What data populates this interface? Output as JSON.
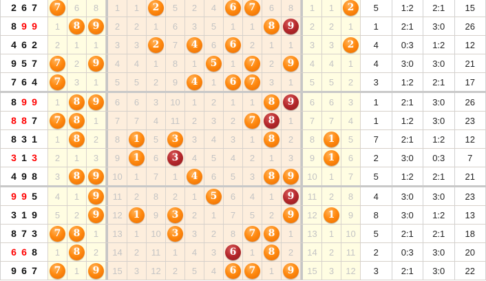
{
  "colors": {
    "ball_orange": "#ff8a10",
    "ball_red": "#b4272b",
    "repeat_digit": "#ff0000",
    "yellow_zone": "#fffde2",
    "orange_zone": "#fdeedd"
  },
  "rows": [
    {
      "draw": [
        "2",
        "6",
        "7"
      ],
      "repeat": [],
      "left": [
        {
          "v": "7",
          "ball": "orange"
        },
        "6",
        "8"
      ],
      "digits": [
        "1",
        "1",
        {
          "v": "2",
          "ball": "orange"
        },
        "5",
        "2",
        "4",
        {
          "v": "6",
          "ball": "orange"
        },
        {
          "v": "7",
          "ball": "orange"
        },
        "6",
        "8"
      ],
      "right": [
        "1",
        "1",
        {
          "v": "2",
          "ball": "orange"
        }
      ],
      "stats": [
        "5",
        "1:2",
        "2:1",
        "15"
      ]
    },
    {
      "draw": [
        "8",
        "9",
        "9"
      ],
      "repeat": [
        1,
        2
      ],
      "left": [
        "1",
        {
          "v": "8",
          "ball": "orange"
        },
        {
          "v": "9",
          "ball": "orange"
        }
      ],
      "digits": [
        "2",
        "2",
        "1",
        "6",
        "3",
        "5",
        "1",
        "1",
        {
          "v": "8",
          "ball": "orange"
        },
        {
          "v": "9",
          "ball": "red"
        }
      ],
      "right": [
        "2",
        "2",
        "1"
      ],
      "stats": [
        "1",
        "2:1",
        "3:0",
        "26"
      ]
    },
    {
      "draw": [
        "4",
        "6",
        "2"
      ],
      "repeat": [],
      "left": [
        "2",
        "1",
        "1"
      ],
      "digits": [
        "3",
        "3",
        {
          "v": "2",
          "ball": "orange"
        },
        "7",
        {
          "v": "4",
          "ball": "orange"
        },
        "6",
        {
          "v": "6",
          "ball": "orange"
        },
        "2",
        "1",
        "1"
      ],
      "right": [
        "3",
        "3",
        {
          "v": "2",
          "ball": "orange"
        }
      ],
      "stats": [
        "4",
        "0:3",
        "1:2",
        "12"
      ]
    },
    {
      "draw": [
        "9",
        "5",
        "7"
      ],
      "repeat": [],
      "left": [
        {
          "v": "7",
          "ball": "orange"
        },
        "2",
        {
          "v": "9",
          "ball": "orange"
        }
      ],
      "digits": [
        "4",
        "4",
        "1",
        "8",
        "1",
        {
          "v": "5",
          "ball": "orange"
        },
        "1",
        {
          "v": "7",
          "ball": "orange"
        },
        "2",
        {
          "v": "9",
          "ball": "orange"
        }
      ],
      "right": [
        "4",
        "4",
        "1"
      ],
      "stats": [
        "4",
        "3:0",
        "3:0",
        "21"
      ]
    },
    {
      "draw": [
        "7",
        "6",
        "4"
      ],
      "repeat": [],
      "left": [
        {
          "v": "7",
          "ball": "orange"
        },
        "3",
        "1"
      ],
      "digits": [
        "5",
        "5",
        "2",
        "9",
        {
          "v": "4",
          "ball": "orange"
        },
        "1",
        {
          "v": "6",
          "ball": "orange"
        },
        {
          "v": "7",
          "ball": "orange"
        },
        "3",
        "1"
      ],
      "right": [
        "5",
        "5",
        "2"
      ],
      "stats": [
        "3",
        "1:2",
        "2:1",
        "17"
      ]
    },
    {
      "draw": [
        "8",
        "9",
        "9"
      ],
      "repeat": [
        1,
        2
      ],
      "left": [
        "1",
        {
          "v": "8",
          "ball": "orange"
        },
        {
          "v": "9",
          "ball": "orange"
        }
      ],
      "digits": [
        "6",
        "6",
        "3",
        "10",
        "1",
        "2",
        "1",
        "1",
        {
          "v": "8",
          "ball": "orange"
        },
        {
          "v": "9",
          "ball": "red"
        }
      ],
      "right": [
        "6",
        "6",
        "3"
      ],
      "stats": [
        "1",
        "2:1",
        "3:0",
        "26"
      ]
    },
    {
      "draw": [
        "8",
        "8",
        "7"
      ],
      "repeat": [
        0,
        1
      ],
      "left": [
        {
          "v": "7",
          "ball": "orange"
        },
        {
          "v": "8",
          "ball": "orange"
        },
        "1"
      ],
      "digits": [
        "7",
        "7",
        "4",
        "11",
        "2",
        "3",
        "2",
        {
          "v": "7",
          "ball": "orange"
        },
        {
          "v": "8",
          "ball": "red"
        },
        "1"
      ],
      "right": [
        "7",
        "7",
        "4"
      ],
      "stats": [
        "1",
        "1:2",
        "3:0",
        "23"
      ]
    },
    {
      "draw": [
        "8",
        "3",
        "1"
      ],
      "repeat": [],
      "left": [
        "1",
        {
          "v": "8",
          "ball": "orange"
        },
        "2"
      ],
      "digits": [
        "8",
        {
          "v": "1",
          "ball": "orange"
        },
        "5",
        {
          "v": "3",
          "ball": "orange"
        },
        "3",
        "4",
        "3",
        "1",
        {
          "v": "8",
          "ball": "orange"
        },
        "2"
      ],
      "right": [
        "8",
        {
          "v": "1",
          "ball": "orange"
        },
        "5"
      ],
      "stats": [
        "7",
        "2:1",
        "1:2",
        "12"
      ]
    },
    {
      "draw": [
        "3",
        "1",
        "3"
      ],
      "repeat": [
        0,
        2
      ],
      "left": [
        "2",
        "1",
        "3"
      ],
      "digits": [
        "9",
        {
          "v": "1",
          "ball": "orange"
        },
        "6",
        {
          "v": "3",
          "ball": "red"
        },
        "4",
        "5",
        "4",
        "2",
        "1",
        "3"
      ],
      "right": [
        "9",
        {
          "v": "1",
          "ball": "orange"
        },
        "6"
      ],
      "stats": [
        "2",
        "3:0",
        "0:3",
        "7"
      ]
    },
    {
      "draw": [
        "4",
        "9",
        "8"
      ],
      "repeat": [],
      "left": [
        "3",
        {
          "v": "8",
          "ball": "orange"
        },
        {
          "v": "9",
          "ball": "orange"
        }
      ],
      "digits": [
        "10",
        "1",
        "7",
        "1",
        {
          "v": "4",
          "ball": "orange"
        },
        "6",
        "5",
        "3",
        {
          "v": "8",
          "ball": "orange"
        },
        {
          "v": "9",
          "ball": "orange"
        }
      ],
      "right": [
        "10",
        "1",
        "7"
      ],
      "stats": [
        "5",
        "1:2",
        "2:1",
        "21"
      ]
    },
    {
      "draw": [
        "9",
        "9",
        "5"
      ],
      "repeat": [
        0,
        1
      ],
      "left": [
        "4",
        "1",
        {
          "v": "9",
          "ball": "orange"
        }
      ],
      "digits": [
        "11",
        "2",
        "8",
        "2",
        "1",
        {
          "v": "5",
          "ball": "orange"
        },
        "6",
        "4",
        "1",
        {
          "v": "9",
          "ball": "red"
        }
      ],
      "right": [
        "11",
        "2",
        "8"
      ],
      "stats": [
        "4",
        "3:0",
        "3:0",
        "23"
      ]
    },
    {
      "draw": [
        "3",
        "1",
        "9"
      ],
      "repeat": [],
      "left": [
        "5",
        "2",
        {
          "v": "9",
          "ball": "orange"
        }
      ],
      "digits": [
        "12",
        {
          "v": "1",
          "ball": "orange"
        },
        "9",
        {
          "v": "3",
          "ball": "orange"
        },
        "2",
        "1",
        "7",
        "5",
        "2",
        {
          "v": "9",
          "ball": "orange"
        }
      ],
      "right": [
        "12",
        {
          "v": "1",
          "ball": "orange"
        },
        "9"
      ],
      "stats": [
        "8",
        "3:0",
        "1:2",
        "13"
      ]
    },
    {
      "draw": [
        "8",
        "7",
        "3"
      ],
      "repeat": [],
      "left": [
        {
          "v": "7",
          "ball": "orange"
        },
        {
          "v": "8",
          "ball": "orange"
        },
        "1"
      ],
      "digits": [
        "13",
        "1",
        "10",
        {
          "v": "3",
          "ball": "orange"
        },
        "3",
        "2",
        "8",
        {
          "v": "7",
          "ball": "orange"
        },
        {
          "v": "8",
          "ball": "orange"
        },
        "1"
      ],
      "right": [
        "13",
        "1",
        "10"
      ],
      "stats": [
        "5",
        "2:1",
        "2:1",
        "18"
      ]
    },
    {
      "draw": [
        "6",
        "6",
        "8"
      ],
      "repeat": [
        0,
        1
      ],
      "left": [
        "1",
        {
          "v": "8",
          "ball": "orange"
        },
        "2"
      ],
      "digits": [
        "14",
        "2",
        "11",
        "1",
        "4",
        "3",
        {
          "v": "6",
          "ball": "red"
        },
        "1",
        {
          "v": "8",
          "ball": "orange"
        },
        "2"
      ],
      "right": [
        "14",
        "2",
        "11"
      ],
      "stats": [
        "2",
        "0:3",
        "3:0",
        "20"
      ]
    },
    {
      "draw": [
        "9",
        "6",
        "7"
      ],
      "repeat": [],
      "left": [
        {
          "v": "7",
          "ball": "orange"
        },
        "1",
        {
          "v": "9",
          "ball": "orange"
        }
      ],
      "digits": [
        "15",
        "3",
        "12",
        "2",
        "5",
        "4",
        {
          "v": "6",
          "ball": "orange"
        },
        {
          "v": "7",
          "ball": "orange"
        },
        "1",
        {
          "v": "9",
          "ball": "orange"
        }
      ],
      "right": [
        "15",
        "3",
        "12"
      ],
      "stats": [
        "3",
        "2:1",
        "3:0",
        "22"
      ]
    }
  ]
}
